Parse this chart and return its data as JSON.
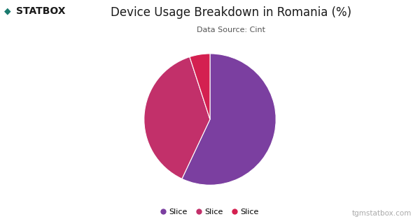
{
  "title": "Device Usage Breakdown in Romania (%)",
  "subtitle": "Data Source: Cint",
  "slices": [
    57,
    38,
    5
  ],
  "labels": [
    "Slice",
    "Slice",
    "Slice"
  ],
  "colors": [
    "#7B3FA0",
    "#C2306A",
    "#D42050"
  ],
  "startangle": 90,
  "watermark": "tgmstatbox.com",
  "logo_text": "STATBOX",
  "background_color": "#ffffff",
  "title_fontsize": 12,
  "subtitle_fontsize": 8,
  "legend_fontsize": 8,
  "watermark_fontsize": 7.5
}
